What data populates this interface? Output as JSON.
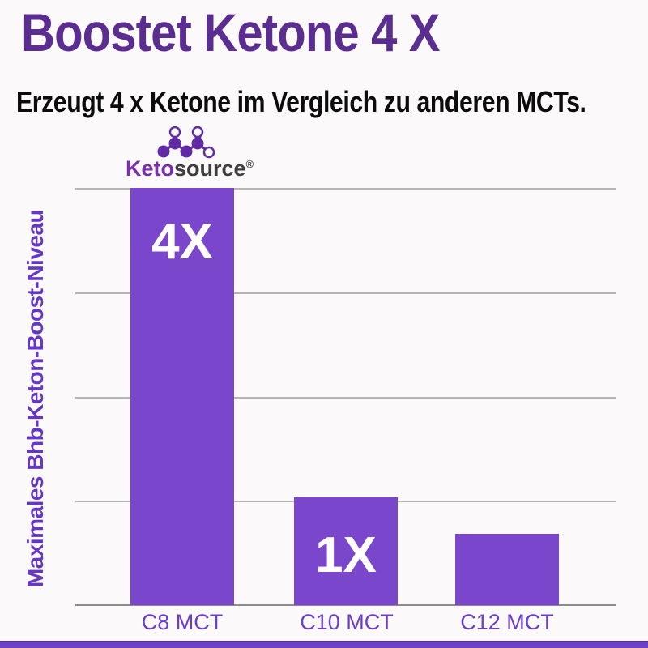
{
  "header": {
    "title": "Boostet Ketone 4 X",
    "subtitle": "Erzeugt 4 x Ketone im Vergleich zu anderen MCTs."
  },
  "logo": {
    "brand_first": "Keto",
    "brand_second": "source",
    "registered_mark": "®",
    "icon": "molecule-icon"
  },
  "chart_data": {
    "type": "bar",
    "categories": [
      "C8 MCT",
      "C10 MCT",
      "C12 MCT"
    ],
    "values": [
      4,
      1.03,
      0.68
    ],
    "bar_labels": [
      "4X",
      "1X",
      ""
    ],
    "title": "",
    "xlabel": "",
    "ylabel": "Maximales Bhb-Keton-Boost-Niveau",
    "ylim": [
      0,
      4
    ],
    "gridline_count": 5,
    "grid": "horizontal lines, no y tick numbers",
    "legend": false
  },
  "colors": {
    "title_purple": "#5b2d90",
    "subtitle_black": "#0c0c0c",
    "bar_purple": "#7a46cc",
    "bar_label_white": "#ffffff",
    "tick_label_purple": "#6b3dcb",
    "ylabel_purple": "#6636c6",
    "logo_keto_purple": "#7a2fae",
    "logo_source_dark": "#3e3e3e",
    "molecule_purple": "#622ba6",
    "grid_gray": "#b6b4b4",
    "axis_gray": "#8c8a8a",
    "footer_purple": "#6d40c4",
    "background": "#fbf9f9"
  }
}
